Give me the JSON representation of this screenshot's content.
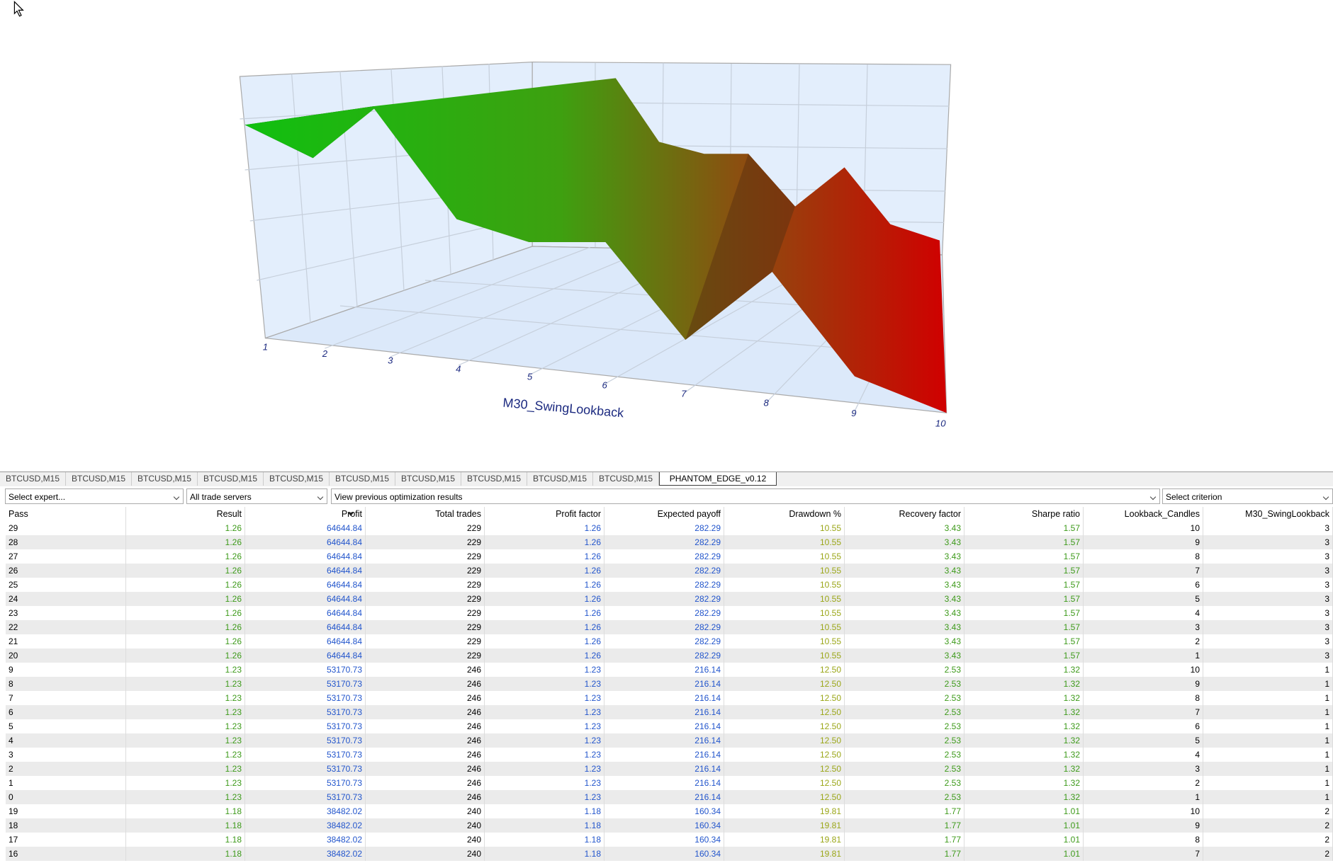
{
  "chart": {
    "xlabel": "M30_SwingLookback",
    "xticks": [
      1,
      2,
      3,
      4,
      5,
      6,
      7,
      8,
      9,
      10
    ]
  },
  "tabs": [
    "BTCUSD,M15",
    "BTCUSD,M15",
    "BTCUSD,M15",
    "BTCUSD,M15",
    "BTCUSD,M15",
    "BTCUSD,M15",
    "BTCUSD,M15",
    "BTCUSD,M15",
    "BTCUSD,M15",
    "BTCUSD,M15",
    "PHANTOM_EDGE_v0.12"
  ],
  "toolbar": {
    "expert": "Select expert...",
    "servers": "All trade servers",
    "results": "View previous optimization results",
    "criterion": "Select criterion"
  },
  "table": {
    "columns": [
      "Pass",
      "Result",
      "Profit",
      "Total trades",
      "Profit factor",
      "Expected payoff",
      "Drawdown %",
      "Recovery factor",
      "Sharpe ratio",
      "Lookback_Candles",
      "M30_SwingLookback"
    ],
    "rows": [
      [
        "29",
        "1.26",
        "64644.84",
        "229",
        "1.26",
        "282.29",
        "10.55",
        "3.43",
        "1.57",
        "10",
        "3"
      ],
      [
        "28",
        "1.26",
        "64644.84",
        "229",
        "1.26",
        "282.29",
        "10.55",
        "3.43",
        "1.57",
        "9",
        "3"
      ],
      [
        "27",
        "1.26",
        "64644.84",
        "229",
        "1.26",
        "282.29",
        "10.55",
        "3.43",
        "1.57",
        "8",
        "3"
      ],
      [
        "26",
        "1.26",
        "64644.84",
        "229",
        "1.26",
        "282.29",
        "10.55",
        "3.43",
        "1.57",
        "7",
        "3"
      ],
      [
        "25",
        "1.26",
        "64644.84",
        "229",
        "1.26",
        "282.29",
        "10.55",
        "3.43",
        "1.57",
        "6",
        "3"
      ],
      [
        "24",
        "1.26",
        "64644.84",
        "229",
        "1.26",
        "282.29",
        "10.55",
        "3.43",
        "1.57",
        "5",
        "3"
      ],
      [
        "23",
        "1.26",
        "64644.84",
        "229",
        "1.26",
        "282.29",
        "10.55",
        "3.43",
        "1.57",
        "4",
        "3"
      ],
      [
        "22",
        "1.26",
        "64644.84",
        "229",
        "1.26",
        "282.29",
        "10.55",
        "3.43",
        "1.57",
        "3",
        "3"
      ],
      [
        "21",
        "1.26",
        "64644.84",
        "229",
        "1.26",
        "282.29",
        "10.55",
        "3.43",
        "1.57",
        "2",
        "3"
      ],
      [
        "20",
        "1.26",
        "64644.84",
        "229",
        "1.26",
        "282.29",
        "10.55",
        "3.43",
        "1.57",
        "1",
        "3"
      ],
      [
        "9",
        "1.23",
        "53170.73",
        "246",
        "1.23",
        "216.14",
        "12.50",
        "2.53",
        "1.32",
        "10",
        "1"
      ],
      [
        "8",
        "1.23",
        "53170.73",
        "246",
        "1.23",
        "216.14",
        "12.50",
        "2.53",
        "1.32",
        "9",
        "1"
      ],
      [
        "7",
        "1.23",
        "53170.73",
        "246",
        "1.23",
        "216.14",
        "12.50",
        "2.53",
        "1.32",
        "8",
        "1"
      ],
      [
        "6",
        "1.23",
        "53170.73",
        "246",
        "1.23",
        "216.14",
        "12.50",
        "2.53",
        "1.32",
        "7",
        "1"
      ],
      [
        "5",
        "1.23",
        "53170.73",
        "246",
        "1.23",
        "216.14",
        "12.50",
        "2.53",
        "1.32",
        "6",
        "1"
      ],
      [
        "4",
        "1.23",
        "53170.73",
        "246",
        "1.23",
        "216.14",
        "12.50",
        "2.53",
        "1.32",
        "5",
        "1"
      ],
      [
        "3",
        "1.23",
        "53170.73",
        "246",
        "1.23",
        "216.14",
        "12.50",
        "2.53",
        "1.32",
        "4",
        "1"
      ],
      [
        "2",
        "1.23",
        "53170.73",
        "246",
        "1.23",
        "216.14",
        "12.50",
        "2.53",
        "1.32",
        "3",
        "1"
      ],
      [
        "1",
        "1.23",
        "53170.73",
        "246",
        "1.23",
        "216.14",
        "12.50",
        "2.53",
        "1.32",
        "2",
        "1"
      ],
      [
        "0",
        "1.23",
        "53170.73",
        "246",
        "1.23",
        "216.14",
        "12.50",
        "2.53",
        "1.32",
        "1",
        "1"
      ],
      [
        "19",
        "1.18",
        "38482.02",
        "240",
        "1.18",
        "160.34",
        "19.81",
        "1.77",
        "1.01",
        "10",
        "2"
      ],
      [
        "18",
        "1.18",
        "38482.02",
        "240",
        "1.18",
        "160.34",
        "19.81",
        "1.77",
        "1.01",
        "9",
        "2"
      ],
      [
        "17",
        "1.18",
        "38482.02",
        "240",
        "1.18",
        "160.34",
        "19.81",
        "1.77",
        "1.01",
        "8",
        "2"
      ],
      [
        "16",
        "1.18",
        "38482.02",
        "240",
        "1.18",
        "160.34",
        "19.81",
        "1.77",
        "1.01",
        "7",
        "2"
      ]
    ]
  }
}
